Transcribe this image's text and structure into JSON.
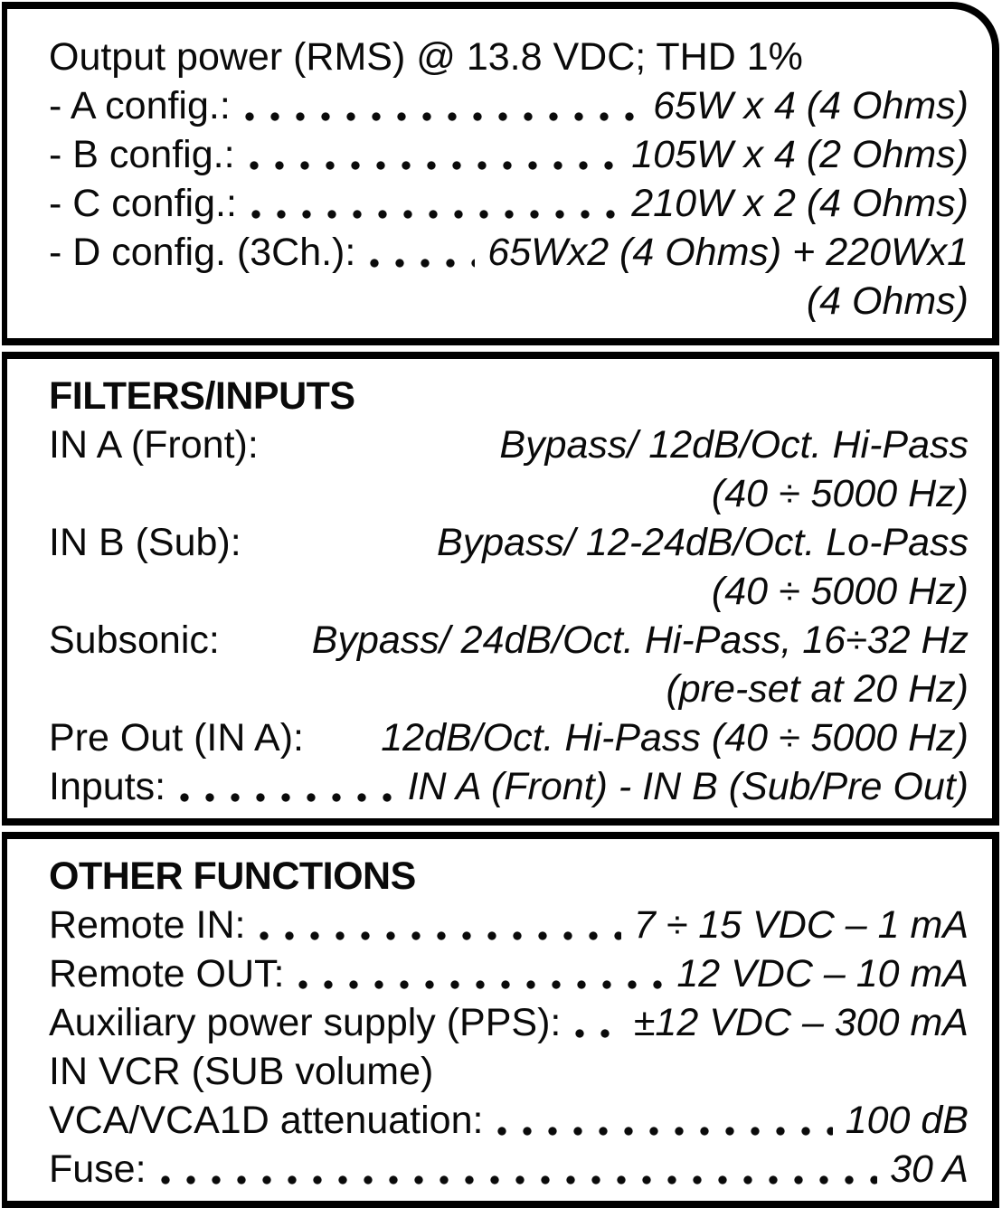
{
  "colors": {
    "ink": "#0a0a0a",
    "paper": "#ffffff",
    "border": "#000000"
  },
  "output_power": {
    "title": "Output power (RMS) @ 13.8 VDC; THD 1%",
    "rows": [
      {
        "label": "- A config.:",
        "value": "65W x 4 (4 Ohms)"
      },
      {
        "label": "- B config.:",
        "value": "105W x 4 (2 Ohms)"
      },
      {
        "label": "- C config.:",
        "value": "210W x 2 (4 Ohms)"
      },
      {
        "label": "- D config. (3Ch.):",
        "value": "65Wx2 (4 Ohms) + 220Wx1",
        "value2": "(4 Ohms)"
      }
    ]
  },
  "filters_inputs": {
    "heading": "FILTERS/INPUTS",
    "rows": [
      {
        "label": "IN A (Front):",
        "value": "Bypass/ 12dB/Oct. Hi-Pass",
        "value2": "(40 ÷ 5000 Hz)"
      },
      {
        "label": "IN B (Sub):",
        "value": "Bypass/ 12-24dB/Oct. Lo-Pass",
        "value2": "(40 ÷ 5000 Hz)"
      },
      {
        "label": "Subsonic:",
        "value": "Bypass/ 24dB/Oct. Hi-Pass, 16÷32 Hz",
        "value2": "(pre-set at 20 Hz)"
      },
      {
        "label": "Pre Out (IN A):",
        "value": "12dB/Oct. Hi-Pass (40 ÷ 5000 Hz)"
      },
      {
        "label": "Inputs:",
        "value": "IN A (Front) - IN B (Sub/Pre Out)"
      }
    ]
  },
  "other_functions": {
    "heading": "OTHER FUNCTIONS",
    "rows": [
      {
        "label": "Remote IN:",
        "value": "7 ÷ 15 VDC – 1 mA"
      },
      {
        "label": "Remote OUT:",
        "value": "12 VDC – 10 mA"
      },
      {
        "label": "Auxiliary power supply (PPS):",
        "value": "±12 VDC – 300 mA"
      },
      {
        "label": "IN VCR (SUB volume)",
        "value": ""
      },
      {
        "label": "VCA/VCA1D attenuation:",
        "value": "100 dB"
      },
      {
        "label": "Fuse:",
        "value": "30 A"
      }
    ]
  }
}
